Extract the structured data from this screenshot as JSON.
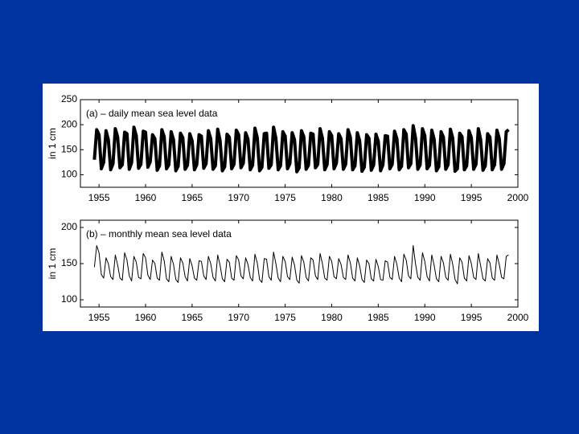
{
  "chart_data": [
    {
      "type": "line",
      "title": "(a) – daily mean sea level data",
      "y_label": "in 1 cm",
      "xlim": [
        1953,
        2000
      ],
      "xticks": [
        1955,
        1960,
        1965,
        1970,
        1975,
        1980,
        1985,
        1990,
        1995,
        2000
      ],
      "ylim": [
        75,
        250
      ],
      "yticks": [
        100,
        150,
        200,
        250
      ],
      "color": "#000000",
      "line_width": 4,
      "x": [
        1954.5,
        1954.75,
        1955,
        1955.25,
        1955.5,
        1955.75,
        1956,
        1956.25,
        1956.5,
        1956.75,
        1957,
        1957.25,
        1957.5,
        1957.75,
        1958,
        1958.25,
        1958.5,
        1958.75,
        1959,
        1959.25,
        1959.5,
        1959.75,
        1960,
        1960.25,
        1960.5,
        1960.75,
        1961,
        1961.25,
        1961.5,
        1961.75,
        1962,
        1962.25,
        1962.5,
        1962.75,
        1963,
        1963.25,
        1963.5,
        1963.75,
        1964,
        1964.25,
        1964.5,
        1964.75,
        1965,
        1965.25,
        1965.5,
        1965.75,
        1966,
        1966.25,
        1966.5,
        1966.75,
        1967,
        1967.25,
        1967.5,
        1967.75,
        1968,
        1968.25,
        1968.5,
        1968.75,
        1969,
        1969.25,
        1969.5,
        1969.75,
        1970,
        1970.25,
        1970.5,
        1970.75,
        1971,
        1971.25,
        1971.5,
        1971.75,
        1972,
        1972.25,
        1972.5,
        1972.75,
        1973,
        1973.25,
        1973.5,
        1973.75,
        1974,
        1974.25,
        1974.5,
        1974.75,
        1975,
        1975.25,
        1975.5,
        1975.75,
        1976,
        1976.25,
        1976.5,
        1976.75,
        1977,
        1977.25,
        1977.5,
        1977.75,
        1978,
        1978.25,
        1978.5,
        1978.75,
        1979,
        1979.25,
        1979.5,
        1979.75,
        1980,
        1980.25,
        1980.5,
        1980.75,
        1981,
        1981.25,
        1981.5,
        1981.75,
        1982,
        1982.25,
        1982.5,
        1982.75,
        1983,
        1983.25,
        1983.5,
        1983.75,
        1984,
        1984.25,
        1984.5,
        1984.75,
        1985,
        1985.25,
        1985.5,
        1985.75,
        1986,
        1986.25,
        1986.5,
        1986.75,
        1987,
        1987.25,
        1987.5,
        1987.75,
        1988,
        1988.25,
        1988.5,
        1988.75,
        1989,
        1989.25,
        1989.5,
        1989.75,
        1990,
        1990.25,
        1990.5,
        1990.75,
        1991,
        1991.25,
        1991.5,
        1991.75,
        1992,
        1992.25,
        1992.5,
        1992.75,
        1993,
        1993.25,
        1993.5,
        1993.75,
        1994,
        1994.25,
        1994.5,
        1994.75,
        1995,
        1995.25,
        1995.5,
        1995.75,
        1996,
        1996.25,
        1996.5,
        1996.75,
        1997,
        1997.25,
        1997.5,
        1997.75,
        1998,
        1998.25,
        1998.5,
        1998.75,
        1999
      ],
      "values": [
        130,
        190,
        180,
        112,
        125,
        188,
        170,
        110,
        122,
        192,
        175,
        114,
        120,
        185,
        182,
        111,
        124,
        195,
        178,
        113,
        121,
        187,
        185,
        115,
        126,
        180,
        172,
        109,
        118,
        190,
        176,
        112,
        120,
        186,
        170,
        108,
        117,
        183,
        174,
        111,
        119,
        182,
        168,
        110,
        120,
        180,
        177,
        113,
        122,
        188,
        172,
        111,
        118,
        191,
        169,
        108,
        116,
        181,
        175,
        112,
        121,
        189,
        180,
        114,
        123,
        184,
        171,
        110,
        119,
        193,
        174,
        108,
        115,
        182,
        183,
        113,
        120,
        195,
        173,
        110,
        118,
        186,
        177,
        112,
        122,
        184,
        170,
        106,
        114,
        188,
        176,
        111,
        119,
        183,
        181,
        114,
        121,
        192,
        173,
        110,
        120,
        186,
        178,
        112,
        123,
        182,
        172,
        111,
        121,
        190,
        175,
        110,
        118,
        184,
        168,
        107,
        115,
        180,
        173,
        109,
        119,
        181,
        167,
        108,
        120,
        178,
        177,
        112,
        121,
        187,
        172,
        110,
        117,
        190,
        181,
        114,
        122,
        198,
        174,
        111,
        120,
        192,
        178,
        112,
        119,
        189,
        171,
        108,
        116,
        186,
        175,
        111,
        120,
        191,
        173,
        107,
        112,
        183,
        176,
        110,
        118,
        188,
        174,
        111,
        121,
        192,
        170,
        109,
        118,
        182,
        175,
        110,
        120,
        189,
        172,
        111,
        122,
        186,
        190
      ]
    },
    {
      "type": "line",
      "title": "(b) – monthly mean sea level data",
      "y_label": "in 1 cm",
      "xlim": [
        1953,
        2000
      ],
      "xticks": [
        1955,
        1960,
        1965,
        1970,
        1975,
        1980,
        1985,
        1990,
        1995,
        2000
      ],
      "ylim": [
        90,
        210
      ],
      "yticks": [
        100,
        150,
        200
      ],
      "color": "#000000",
      "line_width": 1,
      "x": [
        1954.5,
        1954.75,
        1955,
        1955.25,
        1955.5,
        1955.75,
        1956,
        1956.25,
        1956.5,
        1956.75,
        1957,
        1957.25,
        1957.5,
        1957.75,
        1958,
        1958.25,
        1958.5,
        1958.75,
        1959,
        1959.25,
        1959.5,
        1959.75,
        1960,
        1960.25,
        1960.5,
        1960.75,
        1961,
        1961.25,
        1961.5,
        1961.75,
        1962,
        1962.25,
        1962.5,
        1962.75,
        1963,
        1963.25,
        1963.5,
        1963.75,
        1964,
        1964.25,
        1964.5,
        1964.75,
        1965,
        1965.25,
        1965.5,
        1965.75,
        1966,
        1966.25,
        1966.5,
        1966.75,
        1967,
        1967.25,
        1967.5,
        1967.75,
        1968,
        1968.25,
        1968.5,
        1968.75,
        1969,
        1969.25,
        1969.5,
        1969.75,
        1970,
        1970.25,
        1970.5,
        1970.75,
        1971,
        1971.25,
        1971.5,
        1971.75,
        1972,
        1972.25,
        1972.5,
        1972.75,
        1973,
        1973.25,
        1973.5,
        1973.75,
        1974,
        1974.25,
        1974.5,
        1974.75,
        1975,
        1975.25,
        1975.5,
        1975.75,
        1976,
        1976.25,
        1976.5,
        1976.75,
        1977,
        1977.25,
        1977.5,
        1977.75,
        1978,
        1978.25,
        1978.5,
        1978.75,
        1979,
        1979.25,
        1979.5,
        1979.75,
        1980,
        1980.25,
        1980.5,
        1980.75,
        1981,
        1981.25,
        1981.5,
        1981.75,
        1982,
        1982.25,
        1982.5,
        1982.75,
        1983,
        1983.25,
        1983.5,
        1983.75,
        1984,
        1984.25,
        1984.5,
        1984.75,
        1985,
        1985.25,
        1985.5,
        1985.75,
        1986,
        1986.25,
        1986.5,
        1986.75,
        1987,
        1987.25,
        1987.5,
        1987.75,
        1988,
        1988.25,
        1988.5,
        1988.75,
        1989,
        1989.25,
        1989.5,
        1989.75,
        1990,
        1990.25,
        1990.5,
        1990.75,
        1991,
        1991.25,
        1991.5,
        1991.75,
        1992,
        1992.25,
        1992.5,
        1992.75,
        1993,
        1993.25,
        1993.5,
        1993.75,
        1994,
        1994.25,
        1994.5,
        1994.75,
        1995,
        1995.25,
        1995.5,
        1995.75,
        1996,
        1996.25,
        1996.5,
        1996.75,
        1997,
        1997.25,
        1997.5,
        1997.75,
        1998,
        1998.25,
        1998.5,
        1998.75,
        1999
      ],
      "values": [
        145,
        175,
        165,
        135,
        130,
        158,
        150,
        132,
        128,
        162,
        148,
        130,
        127,
        165,
        155,
        133,
        126,
        160,
        152,
        131,
        129,
        164,
        158,
        134,
        128,
        155,
        150,
        130,
        127,
        166,
        154,
        129,
        125,
        160,
        149,
        128,
        124,
        158,
        151,
        132,
        126,
        157,
        147,
        130,
        127,
        154,
        153,
        133,
        128,
        160,
        150,
        131,
        126,
        162,
        148,
        129,
        125,
        156,
        152,
        130,
        127,
        161,
        155,
        133,
        129,
        158,
        149,
        131,
        126,
        163,
        151,
        128,
        124,
        157,
        156,
        132,
        127,
        166,
        150,
        130,
        125,
        160,
        153,
        132,
        128,
        159,
        148,
        127,
        123,
        161,
        152,
        131,
        126,
        158,
        155,
        133,
        128,
        164,
        150,
        130,
        127,
        160,
        153,
        132,
        129,
        157,
        149,
        131,
        128,
        162,
        151,
        130,
        126,
        158,
        147,
        128,
        124,
        155,
        150,
        129,
        126,
        156,
        146,
        128,
        127,
        154,
        152,
        131,
        128,
        160,
        149,
        130,
        125,
        163,
        155,
        133,
        129,
        175,
        150,
        131,
        127,
        165,
        153,
        132,
        126,
        162,
        148,
        129,
        125,
        160,
        151,
        131,
        127,
        163,
        149,
        128,
        122,
        158,
        152,
        130,
        126,
        161,
        150,
        131,
        128,
        164,
        147,
        129,
        126,
        157,
        151,
        130,
        127,
        162,
        149,
        131,
        129,
        160,
        162
      ]
    }
  ]
}
